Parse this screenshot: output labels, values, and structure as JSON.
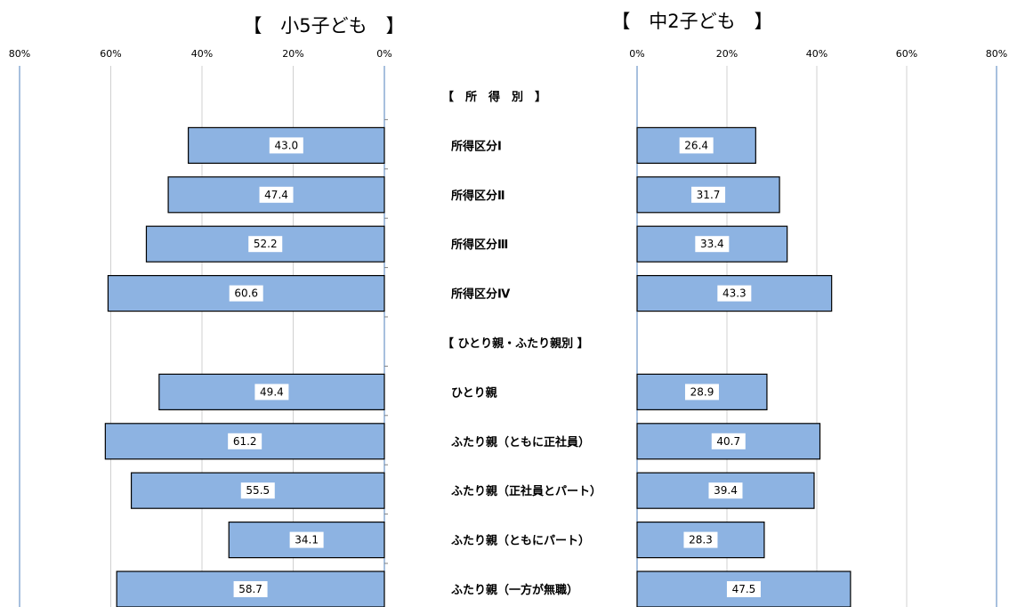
{
  "chart_data": [
    {
      "type": "bar",
      "title": "【　小5子ども　】",
      "orientation": "horizontal-left",
      "xlim": [
        0,
        80
      ],
      "tick_labels": [
        "80%",
        "60%",
        "40%",
        "20%",
        "0%"
      ],
      "grid": true,
      "categories": [
        "【　所　得　別　】",
        "所得区分Ⅰ",
        "所得区分Ⅱ",
        "所得区分Ⅲ",
        "所得区分Ⅳ",
        "【 ひとり親・ふたり親別 】",
        "ひとり親",
        "ふたり親（ともに正社員）",
        "ふたり親（正社員とパート）",
        "ふたり親（ともにパート）",
        "ふたり親（一方が無職）"
      ],
      "values": [
        null,
        43.0,
        47.4,
        52.2,
        60.6,
        null,
        49.4,
        61.2,
        55.5,
        34.1,
        58.7
      ],
      "value_labels": [
        "",
        "43.0",
        "47.4",
        "52.2",
        "60.6",
        "",
        "49.4",
        "61.2",
        "55.5",
        "34.1",
        "58.7"
      ]
    },
    {
      "type": "bar",
      "title": "【　中2子ども　】",
      "orientation": "horizontal-right",
      "xlim": [
        0,
        80
      ],
      "tick_labels": [
        "0%",
        "20%",
        "40%",
        "60%",
        "80%"
      ],
      "grid": true,
      "categories": [
        "【　所　得　別　】",
        "所得区分Ⅰ",
        "所得区分Ⅱ",
        "所得区分Ⅲ",
        "所得区分Ⅳ",
        "【 ひとり親・ふたり親別 】",
        "ひとり親",
        "ふたり親（ともに正社員）",
        "ふたり親（正社員とパート）",
        "ふたり親（ともにパート）",
        "ふたり親（一方が無職）"
      ],
      "values": [
        null,
        26.4,
        31.7,
        33.4,
        43.3,
        null,
        28.9,
        40.7,
        39.4,
        28.3,
        47.5
      ],
      "value_labels": [
        "",
        "26.4",
        "31.7",
        "33.4",
        "43.3",
        "",
        "28.9",
        "40.7",
        "39.4",
        "28.3",
        "47.5"
      ]
    }
  ],
  "colors": {
    "bar_fill": "#8db3e2",
    "bar_stroke": "#000000",
    "axis": "#4f81bd",
    "grid": "#d0d0d0"
  }
}
